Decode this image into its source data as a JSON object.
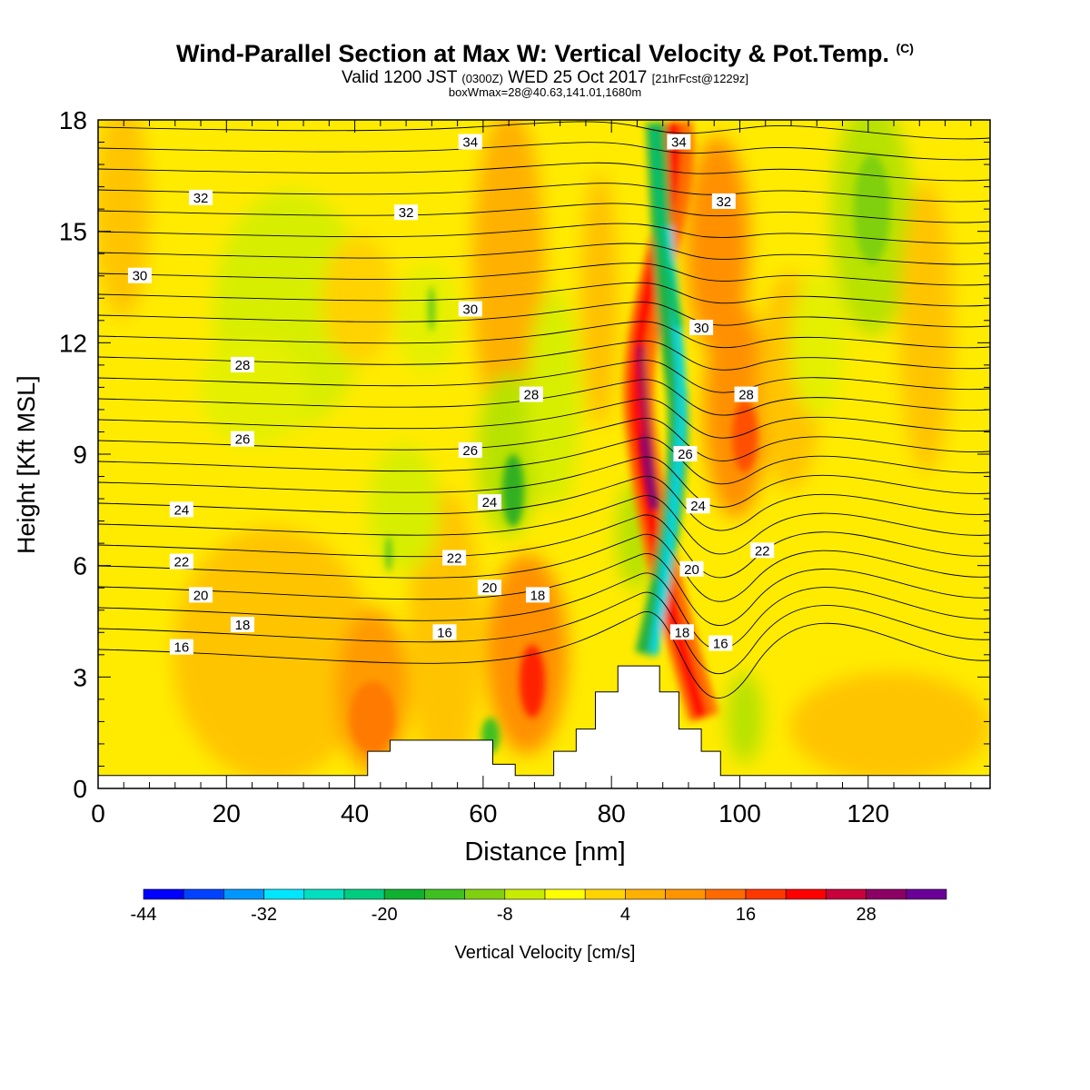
{
  "title": {
    "main": "Wind-Parallel Section at Max W: Vertical Velocity & Pot.Temp.",
    "copyright": "(C)",
    "valid": "Valid 1200 JST",
    "utc": "(0300Z)",
    "date": "WED 25 Oct 2017",
    "fcst": "[21hrFcst@1229z]",
    "box": "boxWmax=28@40.63,141.01,1680m"
  },
  "chart_data": {
    "type": "heatmap",
    "xlabel": "Distance [nm]",
    "ylabel": "Height [Kft MSL]",
    "xlim": [
      0,
      139
    ],
    "ylim": [
      0,
      18
    ],
    "x_ticks": [
      "0",
      "20",
      "40",
      "60",
      "80",
      "100",
      "120"
    ],
    "x_tick_values": [
      0,
      20,
      40,
      60,
      80,
      100,
      120
    ],
    "y_ticks": [
      "0",
      "3",
      "6",
      "9",
      "12",
      "15",
      "18"
    ],
    "y_tick_values": [
      0,
      3,
      6,
      9,
      12,
      15,
      18
    ],
    "colorbar": {
      "label": "Vertical Velocity [cm/s]",
      "tick_labels": [
        "-44",
        "-32",
        "-20",
        "-8",
        "4",
        "16",
        "28"
      ],
      "tick_values": [
        -44,
        -32,
        -20,
        -8,
        4,
        16,
        28
      ],
      "levels": [
        -44,
        -40,
        -36,
        -32,
        -28,
        -24,
        -20,
        -16,
        -12,
        -8,
        -4,
        0,
        4,
        8,
        12,
        16,
        20,
        24,
        28,
        32,
        36
      ],
      "colors": [
        "#0000ff",
        "#0042ff",
        "#0096ff",
        "#00e6ff",
        "#00e0c0",
        "#00cc80",
        "#10b030",
        "#40c020",
        "#80d010",
        "#c8ec00",
        "#ffff00",
        "#ffd400",
        "#ffb000",
        "#ff9400",
        "#ff6a00",
        "#ff3800",
        "#ff0000",
        "#c8003c",
        "#8c0064",
        "#6a0096"
      ]
    },
    "contours": {
      "variable": "potential temperature",
      "labeled_levels": [
        16,
        18,
        20,
        22,
        24,
        26,
        28,
        30,
        32,
        34
      ]
    },
    "contour_labels": [
      {
        "text": "34",
        "x": 58,
        "y": 17.4
      },
      {
        "text": "34",
        "x": 90.5,
        "y": 17.4
      },
      {
        "text": "32",
        "x": 16,
        "y": 15.9
      },
      {
        "text": "32",
        "x": 48,
        "y": 15.5
      },
      {
        "text": "32",
        "x": 97.5,
        "y": 15.8
      },
      {
        "text": "30",
        "x": 6.5,
        "y": 13.8
      },
      {
        "text": "30",
        "x": 58,
        "y": 12.9
      },
      {
        "text": "30",
        "x": 94,
        "y": 12.4
      },
      {
        "text": "28",
        "x": 22.5,
        "y": 11.4
      },
      {
        "text": "28",
        "x": 67.5,
        "y": 10.6
      },
      {
        "text": "28",
        "x": 101,
        "y": 10.6
      },
      {
        "text": "26",
        "x": 22.5,
        "y": 9.4
      },
      {
        "text": "26",
        "x": 58,
        "y": 9.1
      },
      {
        "text": "26",
        "x": 91.5,
        "y": 9.0
      },
      {
        "text": "24",
        "x": 13,
        "y": 7.5
      },
      {
        "text": "24",
        "x": 61,
        "y": 7.7
      },
      {
        "text": "24",
        "x": 93.5,
        "y": 7.6
      },
      {
        "text": "22",
        "x": 13,
        "y": 6.1
      },
      {
        "text": "22",
        "x": 55.5,
        "y": 6.2
      },
      {
        "text": "22",
        "x": 103.5,
        "y": 6.4
      },
      {
        "text": "20",
        "x": 16,
        "y": 5.2
      },
      {
        "text": "20",
        "x": 61,
        "y": 5.4
      },
      {
        "text": "20",
        "x": 92.5,
        "y": 5.9
      },
      {
        "text": "18",
        "x": 22.5,
        "y": 4.4
      },
      {
        "text": "18",
        "x": 68.5,
        "y": 5.2
      },
      {
        "text": "18",
        "x": 91,
        "y": 4.2
      },
      {
        "text": "16",
        "x": 13,
        "y": 3.8
      },
      {
        "text": "16",
        "x": 54,
        "y": 4.2
      },
      {
        "text": "16",
        "x": 97,
        "y": 3.9
      }
    ],
    "terrain": [
      [
        0,
        0.35
      ],
      [
        42,
        0.35
      ],
      [
        42,
        1.0
      ],
      [
        45.5,
        1.0
      ],
      [
        45.5,
        1.3
      ],
      [
        61.5,
        1.3
      ],
      [
        61.5,
        0.65
      ],
      [
        65,
        0.65
      ],
      [
        65,
        0.35
      ],
      [
        71,
        0.35
      ],
      [
        71,
        1.0
      ],
      [
        74.5,
        1.0
      ],
      [
        74.5,
        1.6
      ],
      [
        77.5,
        1.6
      ],
      [
        77.5,
        2.6
      ],
      [
        81,
        2.6
      ],
      [
        81,
        3.3
      ],
      [
        87.5,
        3.3
      ],
      [
        87.5,
        2.6
      ],
      [
        90.5,
        2.6
      ],
      [
        90.5,
        1.6
      ],
      [
        94,
        1.6
      ],
      [
        94,
        1.0
      ],
      [
        97,
        1.0
      ],
      [
        97,
        0.35
      ],
      [
        139,
        0.35
      ]
    ]
  }
}
